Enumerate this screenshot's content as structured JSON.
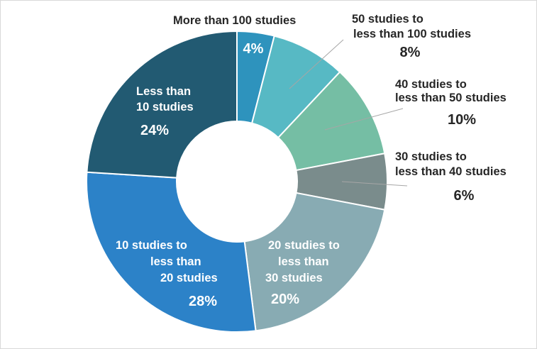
{
  "chart_data": {
    "type": "pie",
    "variant": "donut",
    "title": "",
    "slices": [
      {
        "label": "More than 100 studies",
        "value": 4,
        "display": "4%",
        "color": "#2e93bd"
      },
      {
        "label": "50 studies to less than 100 studies",
        "value": 8,
        "display": "8%",
        "color": "#57b9c4"
      },
      {
        "label": "40 studies to less than 50 studies",
        "value": 10,
        "display": "10%",
        "color": "#75bea4"
      },
      {
        "label": "30 studies to less than 40 studies",
        "value": 6,
        "display": "6%",
        "color": "#7a8c8c"
      },
      {
        "label": "20 studies to less than 30 studies",
        "value": 20,
        "display": "20%",
        "color": "#88abb3"
      },
      {
        "label": "10 studies to less than 20 studies",
        "value": 28,
        "display": "28%",
        "color": "#2c82c8"
      },
      {
        "label": "Less than 10 studies",
        "value": 24,
        "display": "24%",
        "color": "#225a72"
      }
    ],
    "label_lines": {
      "s0": [
        "More than 100 studies"
      ],
      "s1": [
        "50 studies to",
        "less than 100 studies"
      ],
      "s2": [
        "40 studies to",
        "less than 50 studies"
      ],
      "s3": [
        "30 studies to",
        "less than 40 studies"
      ],
      "s4": [
        "20 studies to",
        "less than",
        "30 studies"
      ],
      "s5": [
        "10 studies to",
        "less than",
        "20 studies"
      ],
      "s6": [
        "Less than",
        "10 studies"
      ]
    },
    "legend": "none",
    "data_labels": "category-and-percent"
  }
}
